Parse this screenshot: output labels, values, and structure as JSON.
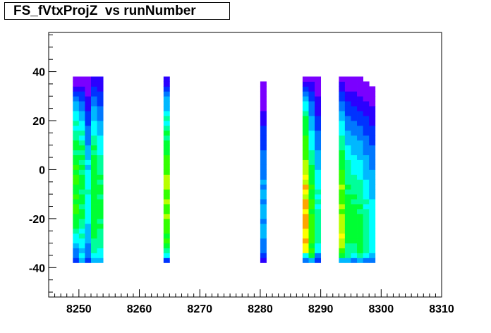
{
  "title": "FS_fVtxProjZ  vs runNumber",
  "chart_data": {
    "type": "heatmap",
    "title": "FS_fVtxProjZ  vs runNumber",
    "xlabel": "",
    "ylabel": "",
    "xlim": [
      8245,
      8310
    ],
    "ylim": [
      -52,
      56
    ],
    "x_tick_labels": [
      "8250",
      "8260",
      "8270",
      "8280",
      "8290",
      "8300",
      "8310"
    ],
    "y_tick_labels": [
      "-40",
      "-20",
      "0",
      "20",
      "40"
    ],
    "y_bins": {
      "start": -38,
      "end": 38,
      "count": 38,
      "step": 2
    },
    "palette": [
      "#7a00ff",
      "#2b00ff",
      "#0033ff",
      "#0077ff",
      "#00b8ff",
      "#00ffff",
      "#00ff9a",
      "#00ff33",
      "#33ff00",
      "#b8ff00",
      "#ffff00",
      "#ffa500",
      "#ff3300"
    ],
    "columns": [
      {
        "run": 8250,
        "intensity": [
          3,
          4,
          4,
          5,
          6,
          6,
          7,
          8,
          8,
          8,
          9,
          9,
          8,
          9,
          8,
          8,
          9,
          9,
          8,
          9,
          8,
          8,
          7,
          8,
          8,
          7,
          7,
          6,
          7,
          6,
          6,
          5,
          5,
          4,
          3,
          2,
          1,
          1
        ]
      },
      {
        "run": 8251,
        "intensity": [
          5,
          6,
          5,
          6,
          6,
          7,
          6,
          7,
          7,
          8,
          8,
          7,
          8,
          8,
          7,
          8,
          8,
          8,
          7,
          8,
          7,
          8,
          7,
          8,
          7,
          6,
          7,
          6,
          6,
          5,
          5,
          4,
          4,
          3,
          3,
          2,
          1,
          1
        ]
      },
      {
        "run": 8252,
        "intensity": [
          3,
          4,
          4,
          4,
          5,
          5,
          5,
          5,
          6,
          6,
          6,
          6,
          6,
          6,
          7,
          6,
          6,
          6,
          6,
          5,
          6,
          5,
          5,
          5,
          4,
          4,
          4,
          4,
          3,
          3,
          3,
          2,
          2,
          2,
          1,
          1,
          1,
          1
        ]
      },
      {
        "run": 8253,
        "intensity": [
          5,
          6,
          7,
          7,
          7,
          8,
          8,
          8,
          8,
          8,
          8,
          8,
          8,
          8,
          8,
          8,
          8,
          8,
          8,
          8,
          8,
          8,
          7,
          8,
          7,
          7,
          6,
          6,
          6,
          5,
          5,
          5,
          4,
          4,
          3,
          3,
          2,
          2
        ]
      },
      {
        "run": 8254,
        "intensity": [
          5,
          6,
          6,
          7,
          7,
          7,
          7,
          8,
          7,
          8,
          8,
          8,
          8,
          7,
          8,
          8,
          7,
          8,
          7,
          7,
          7,
          7,
          6,
          6,
          6,
          6,
          5,
          5,
          5,
          4,
          4,
          4,
          3,
          3,
          3,
          2,
          2,
          2
        ]
      },
      {
        "run": 8265,
        "intensity": [
          3,
          6,
          7,
          8,
          9,
          8,
          9,
          9,
          9,
          10,
          9,
          9,
          10,
          9,
          9,
          10,
          10,
          10,
          9,
          9,
          9,
          9,
          8,
          8,
          8,
          7,
          8,
          7,
          6,
          7,
          6,
          5,
          5,
          5,
          4,
          3,
          2,
          2
        ]
      },
      {
        "run": 8281,
        "intensity": [
          2,
          3,
          4,
          4,
          4,
          5,
          5,
          5,
          4,
          5,
          5,
          5,
          4,
          5,
          5,
          4,
          5,
          4,
          4,
          4,
          4,
          4,
          4,
          3,
          3,
          3,
          3,
          3,
          2,
          2,
          2,
          1,
          1,
          1,
          1,
          1,
          1,
          0
        ]
      },
      {
        "run": 8288,
        "intensity": [
          4,
          6,
          11,
          11,
          12,
          11,
          11,
          12,
          12,
          12,
          11,
          12,
          12,
          10,
          11,
          12,
          10,
          11,
          10,
          10,
          10,
          9,
          9,
          9,
          9,
          9,
          8,
          8,
          8,
          8,
          7,
          6,
          6,
          5,
          4,
          3,
          2,
          1
        ]
      },
      {
        "run": 8289,
        "intensity": [
          5,
          8,
          9,
          8,
          9,
          9,
          9,
          9,
          9,
          9,
          8,
          9,
          9,
          8,
          8,
          9,
          8,
          8,
          8,
          8,
          7,
          7,
          7,
          6,
          6,
          6,
          6,
          5,
          5,
          5,
          4,
          4,
          4,
          3,
          3,
          2,
          2,
          1
        ]
      },
      {
        "run": 8290,
        "intensity": [
          3,
          4,
          6,
          6,
          7,
          7,
          7,
          7,
          7,
          7,
          7,
          6,
          7,
          6,
          7,
          6,
          6,
          6,
          6,
          5,
          5,
          5,
          5,
          4,
          4,
          4,
          4,
          3,
          3,
          3,
          2,
          2,
          2,
          2,
          1,
          1,
          1,
          1
        ]
      },
      {
        "run": 8294,
        "intensity": [
          5,
          8,
          9,
          10,
          10,
          11,
          10,
          10,
          10,
          10,
          9,
          10,
          9,
          9,
          9,
          10,
          9,
          9,
          9,
          8,
          8,
          8,
          8,
          7,
          7,
          7,
          6,
          6,
          6,
          5,
          5,
          4,
          4,
          3,
          3,
          2,
          2,
          1
        ]
      },
      {
        "run": 8295,
        "intensity": [
          5,
          7,
          7,
          7,
          8,
          8,
          8,
          8,
          8,
          8,
          8,
          8,
          8,
          8,
          7,
          8,
          7,
          7,
          7,
          7,
          7,
          6,
          6,
          6,
          5,
          5,
          5,
          4,
          4,
          4,
          3,
          3,
          3,
          2,
          2,
          1,
          1,
          1
        ]
      },
      {
        "run": 8296,
        "intensity": [
          4,
          6,
          7,
          7,
          8,
          8,
          8,
          8,
          8,
          8,
          8,
          8,
          7,
          8,
          7,
          7,
          7,
          7,
          6,
          6,
          6,
          6,
          5,
          5,
          5,
          5,
          4,
          4,
          4,
          3,
          3,
          3,
          2,
          2,
          2,
          1,
          1,
          1
        ]
      },
      {
        "run": 8297,
        "intensity": [
          5,
          7,
          8,
          8,
          8,
          8,
          8,
          8,
          8,
          8,
          7,
          8,
          7,
          7,
          7,
          7,
          7,
          6,
          6,
          6,
          6,
          5,
          5,
          5,
          5,
          4,
          4,
          4,
          3,
          3,
          3,
          2,
          2,
          2,
          1,
          1,
          1,
          1
        ]
      },
      {
        "run": 8298,
        "intensity": [
          4,
          6,
          7,
          7,
          7,
          7,
          7,
          7,
          7,
          7,
          7,
          6,
          7,
          6,
          6,
          6,
          6,
          5,
          5,
          5,
          5,
          5,
          4,
          4,
          4,
          4,
          3,
          3,
          3,
          3,
          2,
          2,
          2,
          1,
          1,
          1,
          1,
          0
        ]
      },
      {
        "run": 8299,
        "intensity": [
          4,
          5,
          6,
          6,
          6,
          6,
          6,
          6,
          6,
          6,
          6,
          6,
          6,
          5,
          5,
          5,
          5,
          5,
          5,
          4,
          4,
          4,
          4,
          4,
          3,
          3,
          3,
          3,
          2,
          2,
          2,
          2,
          1,
          1,
          1,
          1,
          0,
          0
        ]
      }
    ],
    "grid": false,
    "legend": "none"
  }
}
